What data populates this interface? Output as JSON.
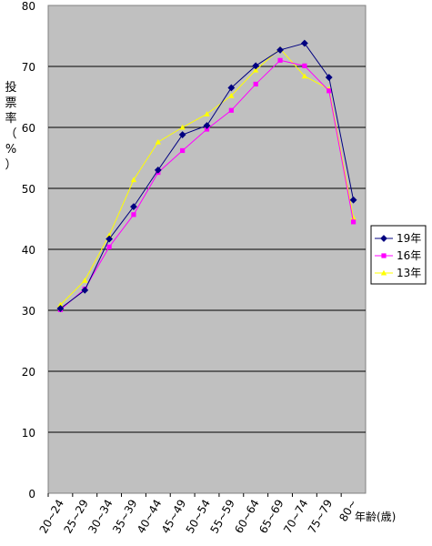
{
  "chart_data": {
    "type": "line",
    "ylabel": "投票率（%）",
    "xlabel": "年齢(歳)",
    "ylim": [
      0,
      80
    ],
    "yticks": [
      0,
      10,
      20,
      30,
      40,
      50,
      60,
      70,
      80
    ],
    "grid": "horizontal",
    "legend_position": "right",
    "categories": [
      "20~24",
      "25~29",
      "30~34",
      "35~39",
      "40~44",
      "45~49",
      "50~54",
      "55~59",
      "60~64",
      "65~69",
      "70~74",
      "75~79",
      "80~"
    ],
    "series": [
      {
        "name": "19年",
        "color": "#000080",
        "marker": "diamond",
        "values": [
          30.3,
          33.3,
          41.7,
          47.0,
          53.0,
          58.8,
          60.3,
          66.5,
          70.1,
          72.7,
          73.8,
          68.2,
          48.1
        ]
      },
      {
        "name": "16年",
        "color": "#ff00ff",
        "marker": "square",
        "values": [
          30.1,
          33.5,
          40.4,
          45.7,
          52.6,
          56.2,
          59.7,
          62.8,
          67.1,
          71.0,
          70.1,
          66.0,
          44.5
        ]
      },
      {
        "name": "13年",
        "color": "#ffff00",
        "marker": "triangle",
        "values": [
          30.9,
          34.9,
          42.3,
          51.4,
          57.6,
          60.0,
          62.2,
          65.2,
          69.4,
          72.9,
          68.4,
          66.3,
          45.2
        ]
      }
    ]
  }
}
